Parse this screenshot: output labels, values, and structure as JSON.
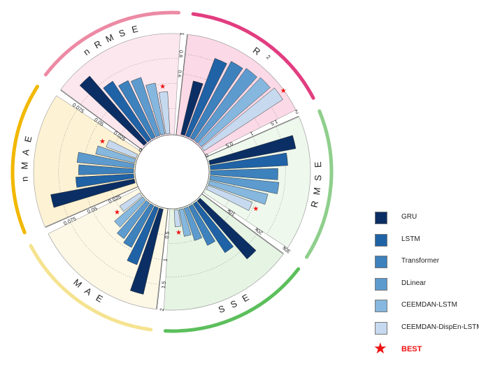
{
  "chart_data": {
    "type": "circular-bar",
    "series": [
      "GRU",
      "LSTM",
      "Transformer",
      "DLinear",
      "CEEMDAN-LSTM",
      "CEEMDAN-DispEn-LSTM"
    ],
    "series_colors": [
      "#0b2f64",
      "#1f62a6",
      "#3d81bd",
      "#5d9bcf",
      "#86b7de",
      "#c6d9ef"
    ],
    "best_label": "BEST",
    "best_color": "#ee1111",
    "panels": [
      {
        "metric": "R",
        "superscript": "2",
        "axis_max": 1,
        "ticks": [
          {
            "v": 0.6,
            "label": "0.6"
          },
          {
            "v": 0.8,
            "label": "0.8"
          },
          {
            "v": 1,
            "label": "1"
          }
        ],
        "values": [
          0.55,
          0.83,
          0.87,
          0.89,
          0.91,
          0.94
        ],
        "best_index": 5,
        "band_color": "#e23d80",
        "bg_color": "#fcd9e6"
      },
      {
        "metric": "RMSE",
        "axis_max": 2,
        "ticks": [
          {
            "v": 0,
            "label": "0"
          },
          {
            "v": 0.5,
            "label": "0.5"
          },
          {
            "v": 1,
            "label": "1"
          },
          {
            "v": 1.5,
            "label": "1.5"
          },
          {
            "v": 2,
            "label": "2"
          }
        ],
        "values": [
          1.75,
          1.55,
          1.35,
          1.38,
          1.2,
          0.95
        ],
        "best_index": 5,
        "band_color": "#8fcf8c",
        "bg_color": "#eef8ed"
      },
      {
        "metric": "SSE",
        "axis_max": 30000,
        "ticks": [
          {
            "v": 10000,
            "label": "10k"
          },
          {
            "v": 20000,
            "label": "20k"
          },
          {
            "v": 30000,
            "label": "30k"
          }
        ],
        "values": [
          23000,
          17500,
          13000,
          10200,
          8200,
          5000
        ],
        "best_index": 5,
        "band_color": "#5cbf5c",
        "bg_color": "#e6f4e4"
      },
      {
        "metric": "MAE",
        "axis_max": 2,
        "ticks": [
          {
            "v": 0.5,
            "label": "0.5"
          },
          {
            "v": 1,
            "label": "1"
          },
          {
            "v": 1.5,
            "label": "1.5"
          },
          {
            "v": 2,
            "label": "2"
          }
        ],
        "values": [
          1.75,
          1.22,
          0.95,
          0.88,
          0.75,
          0.48
        ],
        "best_index": 5,
        "band_color": "#f5e390",
        "bg_color": "#fdf8e6"
      },
      {
        "metric": "nMAE",
        "axis_max": 0.1,
        "ticks": [
          {
            "v": 0.025,
            "label": "0.025"
          },
          {
            "v": 0.05,
            "label": "0.05"
          },
          {
            "v": 0.075,
            "label": "0.075"
          }
        ],
        "values": [
          0.085,
          0.058,
          0.055,
          0.057,
          0.04,
          0.032
        ],
        "best_index": 5,
        "band_color": "#f2b800",
        "bg_color": "#fdf2d3"
      },
      {
        "metric": "nRMSE",
        "axis_max": 0.1,
        "ticks": [
          {
            "v": 0,
            "label": "0"
          },
          {
            "v": 0.025,
            "label": "0.025"
          },
          {
            "v": 0.05,
            "label": "0.05"
          },
          {
            "v": 0.075,
            "label": "0.075"
          }
        ],
        "values": [
          0.088,
          0.07,
          0.063,
          0.061,
          0.052,
          0.042
        ],
        "best_index": 5,
        "band_color": "#ec8aa4",
        "bg_color": "#fce7ee"
      }
    ]
  }
}
